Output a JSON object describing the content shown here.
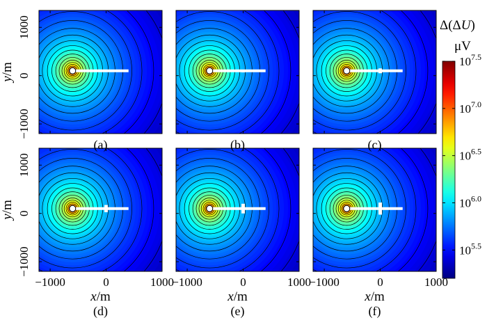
{
  "chart_data": {
    "type": "heatmap",
    "description_free": true,
    "panels": [
      {
        "label": "(a)",
        "defect_vertical_extent_m": 0
      },
      {
        "label": "(b)",
        "defect_vertical_extent_m": 25
      },
      {
        "label": "(c)",
        "defect_vertical_extent_m": 50
      },
      {
        "label": "(d)",
        "defect_vertical_extent_m": 75
      },
      {
        "label": "(e)",
        "defect_vertical_extent_m": 100
      },
      {
        "label": "(f)",
        "defect_vertical_extent_m": 125
      }
    ],
    "source": {
      "x": -600,
      "y": 100
    },
    "well": {
      "x_start": -600,
      "x_end": 400,
      "y": 100,
      "defect_x": 0
    },
    "xlim": [
      -1200,
      1000
    ],
    "ylim": [
      -1200,
      1350
    ],
    "x_ticks": [
      {
        "value": -1000,
        "label": "−1000"
      },
      {
        "value": 0,
        "label": "0"
      },
      {
        "value": 1000,
        "label": "1000"
      }
    ],
    "y_ticks": [
      {
        "value": 1000,
        "label": "1000"
      },
      {
        "value": 0,
        "label": "0"
      },
      {
        "value": -1000,
        "label": "−1000"
      }
    ],
    "xlabel_var": "x",
    "xlabel_unit": "/m",
    "ylabel_var": "y",
    "ylabel_unit": "/m",
    "colorbar": {
      "title_prefix": "Δ(Δ",
      "title_var": "U",
      "title_suffix": ")",
      "unit": "μV",
      "scale": "log",
      "log_min": 5.2,
      "log_max": 7.5,
      "ticks": [
        {
          "base": "10",
          "exp": "7.5",
          "log_value": 7.5
        },
        {
          "base": "10",
          "exp": "7.0",
          "log_value": 7.0
        },
        {
          "base": "10",
          "exp": "6.5",
          "log_value": 6.5
        },
        {
          "base": "10",
          "exp": "6.0",
          "log_value": 6.0
        },
        {
          "base": "10",
          "exp": "5.5",
          "log_value": 5.5
        }
      ],
      "colormap": "jet"
    },
    "grid": false
  }
}
